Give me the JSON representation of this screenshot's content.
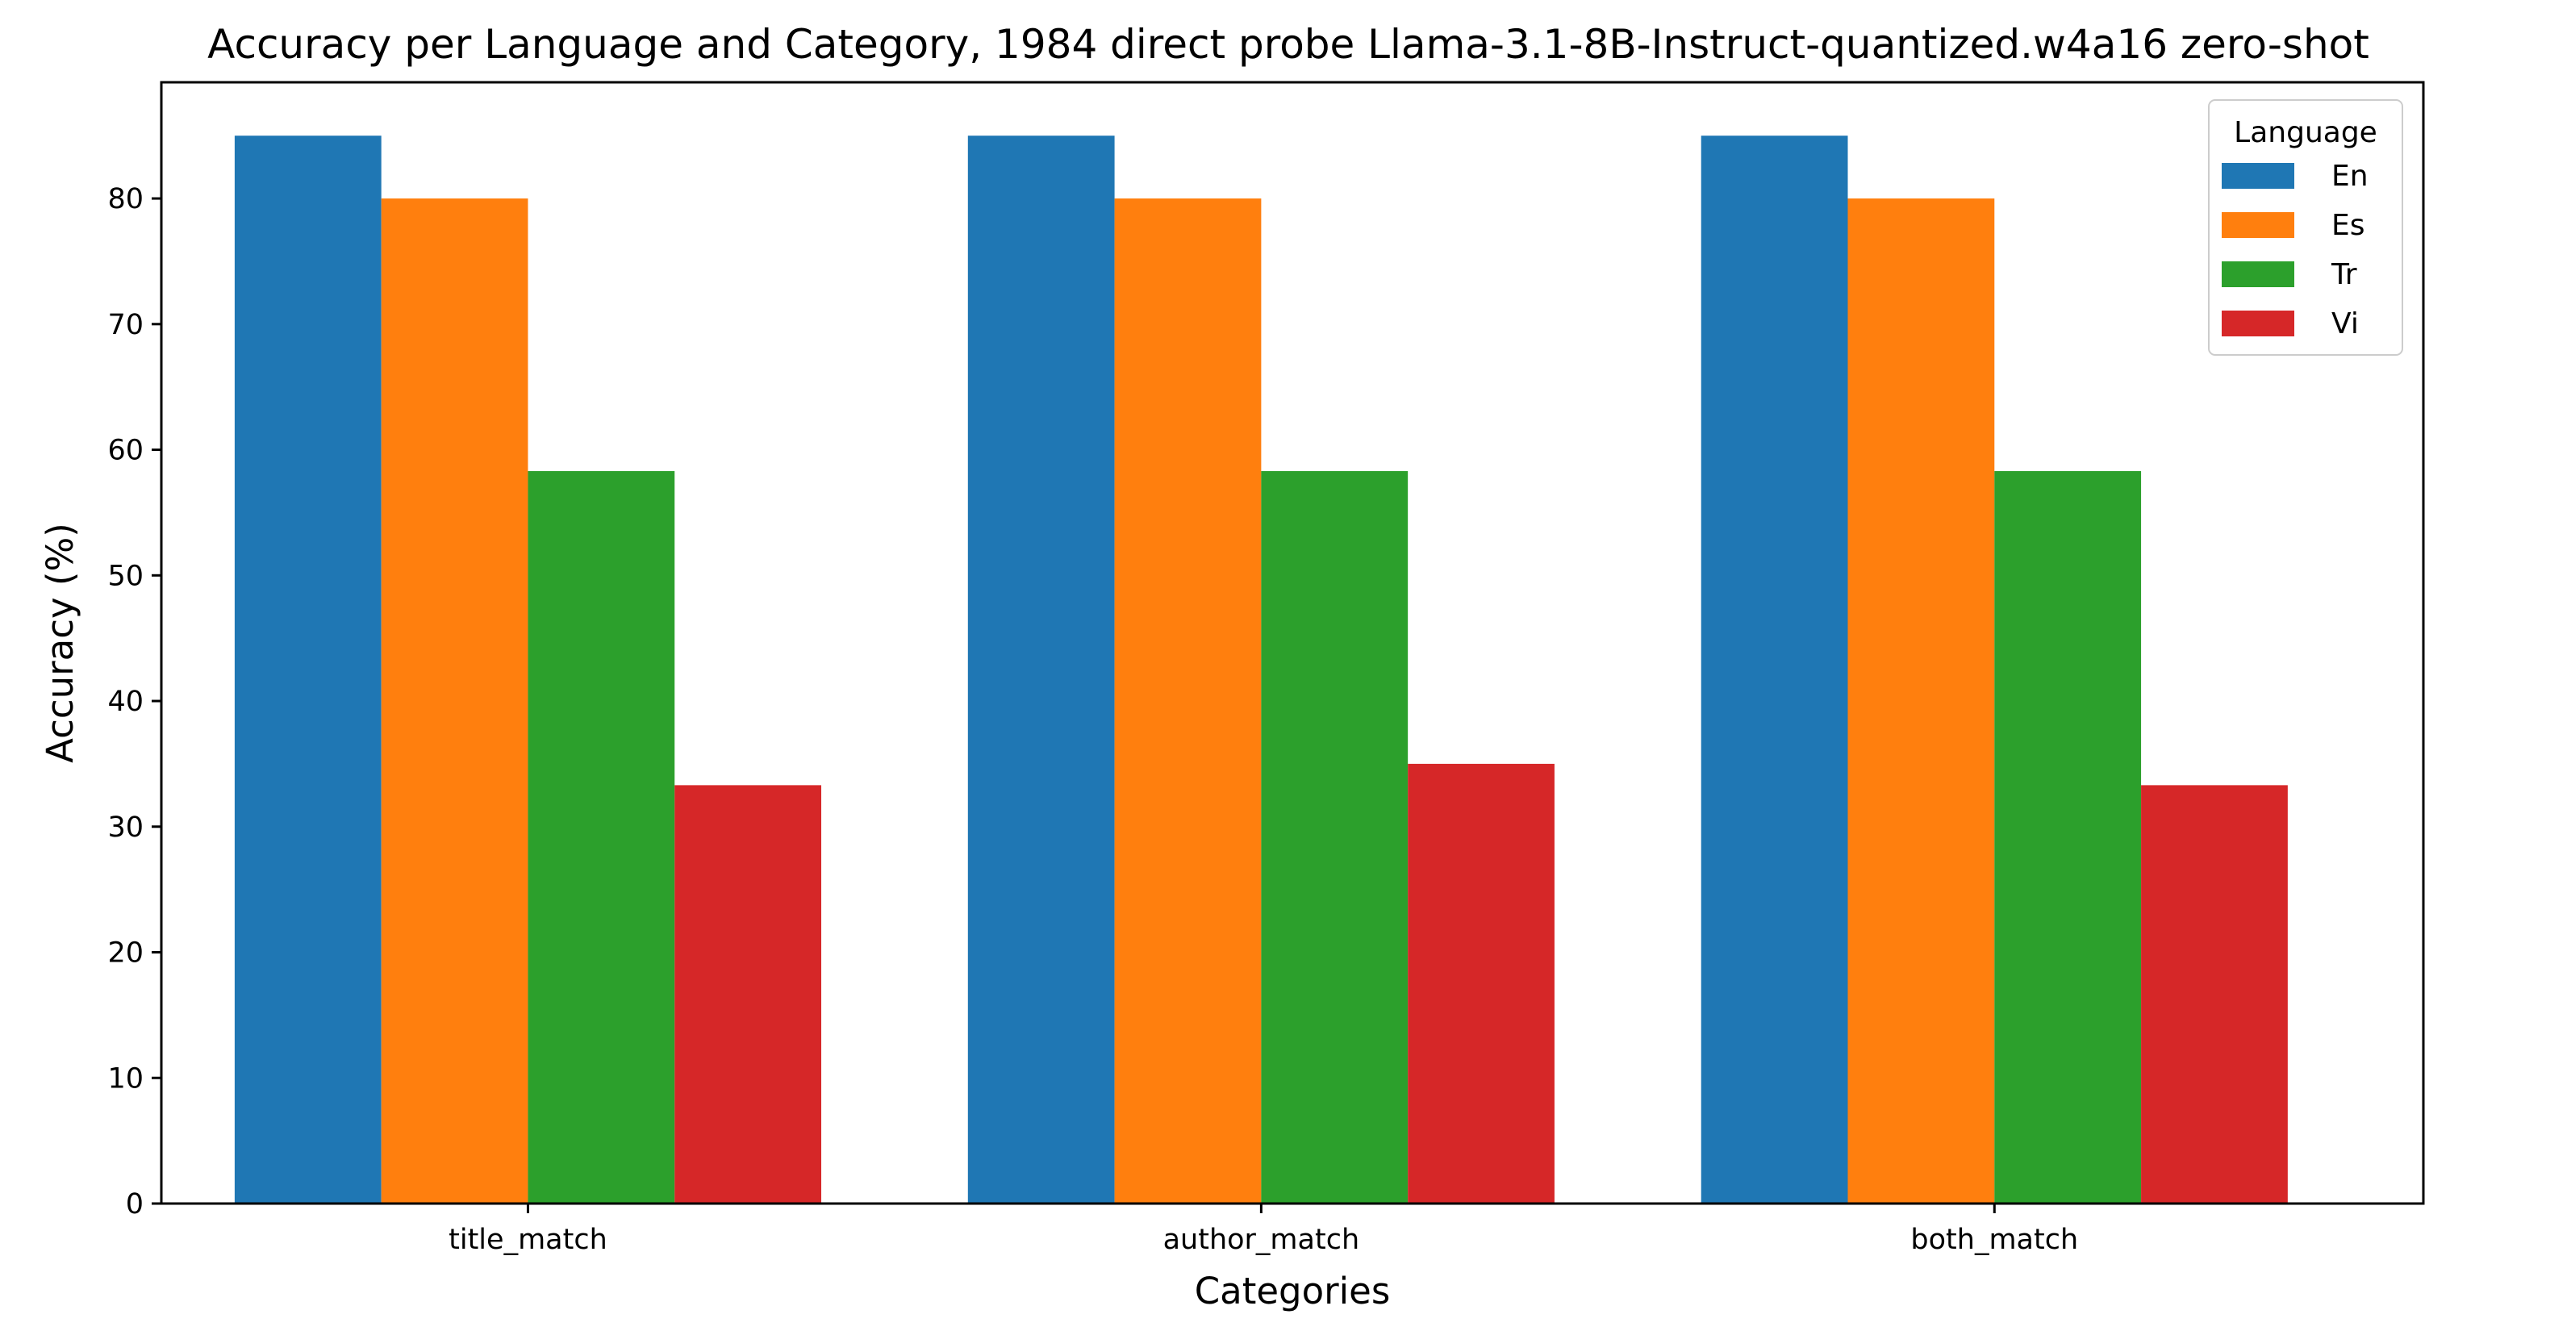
{
  "chart_data": {
    "type": "bar",
    "title": "Accuracy per Language and Category, 1984 direct probe Llama-3.1-8B-Instruct-quantized.w4a16 zero-shot",
    "xlabel": "Categories",
    "ylabel": "Accuracy (%)",
    "categories": [
      "title_match",
      "author_match",
      "both_match"
    ],
    "series": [
      {
        "name": "En",
        "color": "#1f77b4",
        "values": [
          85.0,
          85.0,
          85.0
        ]
      },
      {
        "name": "Es",
        "color": "#ff7f0e",
        "values": [
          80.0,
          80.0,
          80.0
        ]
      },
      {
        "name": "Tr",
        "color": "#2ca02c",
        "values": [
          58.3,
          58.3,
          58.3
        ]
      },
      {
        "name": "Vi",
        "color": "#d62728",
        "values": [
          33.3,
          35.0,
          33.3
        ]
      }
    ],
    "ylim": [
      0,
      89.25
    ],
    "yticks": [
      0,
      10,
      20,
      30,
      40,
      50,
      60,
      70,
      80
    ],
    "legend": {
      "title": "Language",
      "placement": "top-right"
    },
    "grid": false
  }
}
